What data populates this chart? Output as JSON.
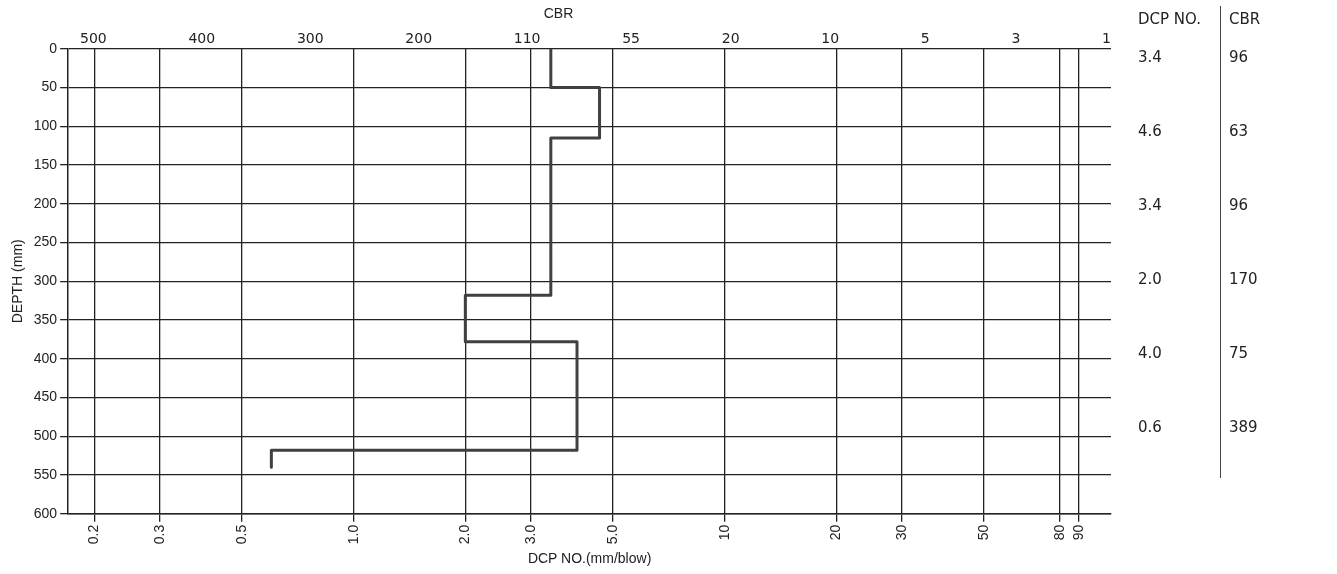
{
  "chart_data": [
    {
      "type": "line",
      "orientation": "horizontal",
      "log": "x",
      "title": "CBR",
      "xlabel": "DCP NO.(mm/blow)",
      "ylabel": "DEPTH (mm)",
      "xlim": [
        0.17,
        110
      ],
      "xticks": [
        {
          "value": 0.2,
          "label": "0.2"
        },
        {
          "value": 0.3,
          "label": "0.3"
        },
        {
          "value": 0.5,
          "label": "0.5"
        },
        {
          "value": 1,
          "label": "1.0"
        },
        {
          "value": 2,
          "label": "2.0"
        },
        {
          "value": 3,
          "label": "3.0"
        },
        {
          "value": 5,
          "label": "5.0"
        },
        10,
        20,
        30,
        50,
        80,
        90
      ],
      "ylim": [
        600,
        0
      ],
      "yticks": [
        0,
        50,
        100,
        150,
        200,
        250,
        300,
        350,
        400,
        450,
        500,
        550,
        600
      ],
      "grid": true,
      "legend": false,
      "marker": "none",
      "line_style": "solid",
      "x": [
        0,
        50,
        50,
        115,
        115,
        318,
        318,
        378,
        378,
        518,
        518,
        540
      ],
      "series": [
        {
          "color": "#404040",
          "values": [
            3.4,
            3.4,
            4.6,
            4.6,
            3.4,
            3.4,
            2.0,
            2.0,
            4.0,
            4.0,
            0.6,
            0.6
          ]
        }
      ],
      "annotations": [
        "500",
        "400",
        "300",
        "200",
        "110",
        "55",
        "20",
        "10",
        "5",
        "3",
        "1"
      ]
    },
    {
      "type": "other",
      "annotations": [
        "DCP NO.",
        "CBR",
        "3.4",
        "96",
        "4.6",
        "63",
        "3.4",
        "96",
        "2.0",
        "170",
        "4.0",
        "75",
        "0.6",
        "389"
      ]
    }
  ]
}
